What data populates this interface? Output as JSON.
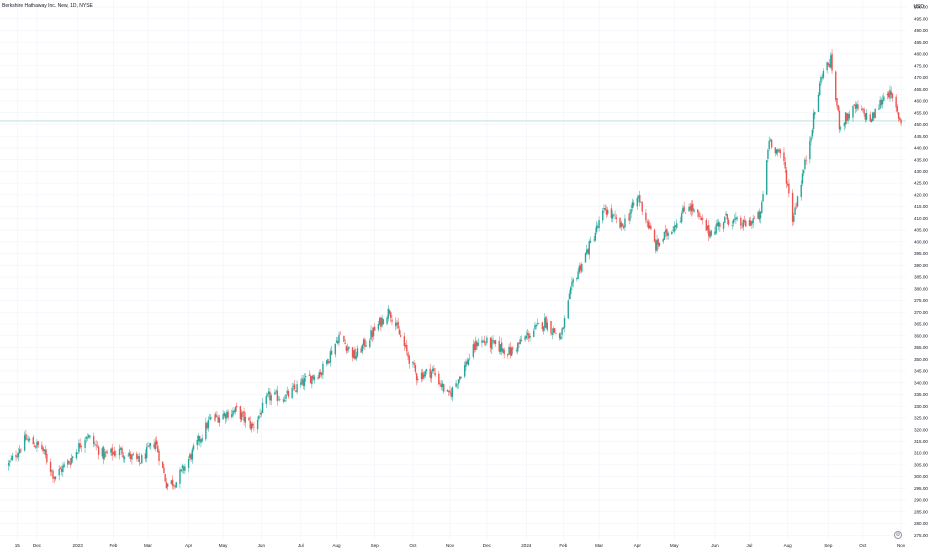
{
  "header": {
    "symbol_title": "Berkshire Hathaway Inc. New, 1D, NYSE",
    "currency": "USD"
  },
  "colors": {
    "up": "#26a69a",
    "down": "#ef5350",
    "grid": "#f0f3fa",
    "price_line": "#b2dfdb",
    "axis_text": "#131722"
  },
  "icons": {
    "settings": "settings-gear-icon"
  },
  "chart_data": {
    "type": "candlestick",
    "title": "Berkshire Hathaway Inc. New, 1D, NYSE",
    "ylabel": "USD",
    "y_axis_side": "right",
    "ylim": [
      273,
      503
    ],
    "y_ticks": [
      275,
      280,
      285,
      290,
      295,
      300,
      305,
      310,
      315,
      320,
      325,
      330,
      335,
      340,
      345,
      350,
      355,
      360,
      365,
      370,
      375,
      380,
      385,
      390,
      395,
      400,
      405,
      410,
      415,
      420,
      425,
      430,
      435,
      440,
      445,
      450,
      455,
      460,
      465,
      470,
      475,
      480,
      485,
      490,
      495,
      500
    ],
    "y_tick_labels": [
      "275.00",
      "280.00",
      "285.00",
      "290.00",
      "295.00",
      "300.00",
      "305.00",
      "310.00",
      "315.00",
      "320.00",
      "325.00",
      "330.00",
      "335.00",
      "340.00",
      "345.00",
      "350.00",
      "355.00",
      "360.00",
      "365.00",
      "370.00",
      "375.00",
      "380.00",
      "385.00",
      "390.00",
      "395.00",
      "400.00",
      "405.00",
      "410.00",
      "415.00",
      "420.00",
      "425.00",
      "430.00",
      "435.00",
      "440.00",
      "445.00",
      "450.00",
      "455.00",
      "460.00",
      "465.00",
      "470.00",
      "475.00",
      "480.00",
      "485.00",
      "490.00",
      "495.00",
      "500.00"
    ],
    "x_range": [
      "2022-11-01",
      "2024-11-05"
    ],
    "x_ticks": [
      {
        "label": "15",
        "date": "2022-11-15"
      },
      {
        "label": "Dec",
        "date": "2022-12-01"
      },
      {
        "label": "2023",
        "date": "2023-01-03"
      },
      {
        "label": "Feb",
        "date": "2023-02-01"
      },
      {
        "label": "Mar",
        "date": "2023-03-01"
      },
      {
        "label": "Apr",
        "date": "2023-04-03"
      },
      {
        "label": "May",
        "date": "2023-05-01"
      },
      {
        "label": "Jun",
        "date": "2023-06-01"
      },
      {
        "label": "Jul",
        "date": "2023-07-03"
      },
      {
        "label": "Aug",
        "date": "2023-08-01"
      },
      {
        "label": "Sep",
        "date": "2023-09-01"
      },
      {
        "label": "Oct",
        "date": "2023-10-02"
      },
      {
        "label": "Nov",
        "date": "2023-11-01"
      },
      {
        "label": "Dec",
        "date": "2023-12-01"
      },
      {
        "label": "2024",
        "date": "2024-01-02"
      },
      {
        "label": "Feb",
        "date": "2024-02-01"
      },
      {
        "label": "Mar",
        "date": "2024-03-01"
      },
      {
        "label": "Apr",
        "date": "2024-04-01"
      },
      {
        "label": "May",
        "date": "2024-05-01"
      },
      {
        "label": "Jun",
        "date": "2024-06-03"
      },
      {
        "label": "Jul",
        "date": "2024-07-01"
      },
      {
        "label": "Aug",
        "date": "2024-08-01"
      },
      {
        "label": "Sep",
        "date": "2024-09-03"
      },
      {
        "label": "Oct",
        "date": "2024-10-01"
      },
      {
        "label": "Nov",
        "date": "2024-11-01"
      }
    ],
    "price_line": 451.5,
    "close_trajectory": [
      {
        "date": "2022-11-08",
        "close": 305
      },
      {
        "date": "2022-11-22",
        "close": 316
      },
      {
        "date": "2022-12-05",
        "close": 312
      },
      {
        "date": "2022-12-15",
        "close": 300
      },
      {
        "date": "2022-12-28",
        "close": 307
      },
      {
        "date": "2023-01-10",
        "close": 318
      },
      {
        "date": "2023-01-24",
        "close": 309
      },
      {
        "date": "2023-02-07",
        "close": 311
      },
      {
        "date": "2023-02-22",
        "close": 306
      },
      {
        "date": "2023-03-07",
        "close": 315
      },
      {
        "date": "2023-03-16",
        "close": 297
      },
      {
        "date": "2023-03-24",
        "close": 298
      },
      {
        "date": "2023-04-06",
        "close": 310
      },
      {
        "date": "2023-04-20",
        "close": 324
      },
      {
        "date": "2023-05-04",
        "close": 327
      },
      {
        "date": "2023-05-12",
        "close": 328
      },
      {
        "date": "2023-05-25",
        "close": 321
      },
      {
        "date": "2023-06-07",
        "close": 334
      },
      {
        "date": "2023-06-21",
        "close": 334
      },
      {
        "date": "2023-07-07",
        "close": 341
      },
      {
        "date": "2023-07-20",
        "close": 345
      },
      {
        "date": "2023-08-03",
        "close": 360
      },
      {
        "date": "2023-08-16",
        "close": 351
      },
      {
        "date": "2023-08-30",
        "close": 361
      },
      {
        "date": "2023-09-13",
        "close": 371
      },
      {
        "date": "2023-09-26",
        "close": 354
      },
      {
        "date": "2023-10-05",
        "close": 343
      },
      {
        "date": "2023-10-18",
        "close": 345
      },
      {
        "date": "2023-10-31",
        "close": 334
      },
      {
        "date": "2023-11-10",
        "close": 344
      },
      {
        "date": "2023-11-24",
        "close": 358
      },
      {
        "date": "2023-12-07",
        "close": 356
      },
      {
        "date": "2023-12-20",
        "close": 353
      },
      {
        "date": "2024-01-03",
        "close": 360
      },
      {
        "date": "2024-01-17",
        "close": 366
      },
      {
        "date": "2024-01-30",
        "close": 359
      },
      {
        "date": "2024-02-09",
        "close": 383
      },
      {
        "date": "2024-02-22",
        "close": 398
      },
      {
        "date": "2024-03-06",
        "close": 414
      },
      {
        "date": "2024-03-19",
        "close": 406
      },
      {
        "date": "2024-04-02",
        "close": 419
      },
      {
        "date": "2024-04-16",
        "close": 398
      },
      {
        "date": "2024-04-29",
        "close": 406
      },
      {
        "date": "2024-05-13",
        "close": 416
      },
      {
        "date": "2024-05-29",
        "close": 404
      },
      {
        "date": "2024-06-12",
        "close": 410
      },
      {
        "date": "2024-06-26",
        "close": 407
      },
      {
        "date": "2024-07-10",
        "close": 411
      },
      {
        "date": "2024-07-17",
        "close": 444
      },
      {
        "date": "2024-07-29",
        "close": 434
      },
      {
        "date": "2024-08-05",
        "close": 410
      },
      {
        "date": "2024-08-15",
        "close": 433
      },
      {
        "date": "2024-08-29",
        "close": 472
      },
      {
        "date": "2024-09-05",
        "close": 477
      },
      {
        "date": "2024-09-12",
        "close": 450
      },
      {
        "date": "2024-09-25",
        "close": 457
      },
      {
        "date": "2024-10-08",
        "close": 452
      },
      {
        "date": "2024-10-21",
        "close": 465
      },
      {
        "date": "2024-11-01",
        "close": 451
      }
    ]
  }
}
